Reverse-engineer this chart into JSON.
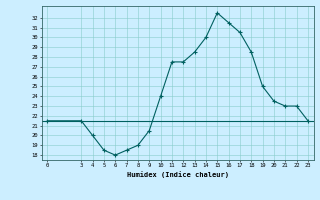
{
  "x": [
    0,
    3,
    4,
    5,
    6,
    7,
    8,
    9,
    10,
    11,
    12,
    13,
    14,
    15,
    16,
    17,
    18,
    19,
    20,
    21,
    22,
    23
  ],
  "y": [
    21.5,
    21.5,
    20.0,
    18.5,
    18.0,
    18.5,
    19.0,
    20.5,
    24.0,
    27.5,
    27.5,
    28.5,
    30.0,
    32.5,
    31.5,
    30.5,
    28.5,
    25.0,
    23.5,
    23.0,
    23.0,
    21.5
  ],
  "hline_y": 21.5,
  "xlabel": "Humidex (Indice chaleur)",
  "ylim": [
    17.5,
    33.2
  ],
  "xlim": [
    -0.5,
    23.5
  ],
  "line_color": "#006060",
  "hline_color": "#006060",
  "bg_color": "#cceeff",
  "grid_color": "#88cccc",
  "tick_positions": [
    0,
    3,
    4,
    5,
    6,
    7,
    8,
    9,
    10,
    11,
    12,
    13,
    14,
    15,
    16,
    17,
    18,
    19,
    20,
    21,
    22,
    23
  ],
  "tick_labels": [
    "0",
    "3",
    "4",
    "5",
    "6",
    "7",
    "8",
    "9",
    "10",
    "11",
    "12",
    "13",
    "14",
    "15",
    "16",
    "17",
    "18",
    "19",
    "20",
    "21",
    "22",
    "23"
  ],
  "yticks": [
    18,
    19,
    20,
    21,
    22,
    23,
    24,
    25,
    26,
    27,
    28,
    29,
    30,
    31,
    32
  ],
  "marker": "+"
}
